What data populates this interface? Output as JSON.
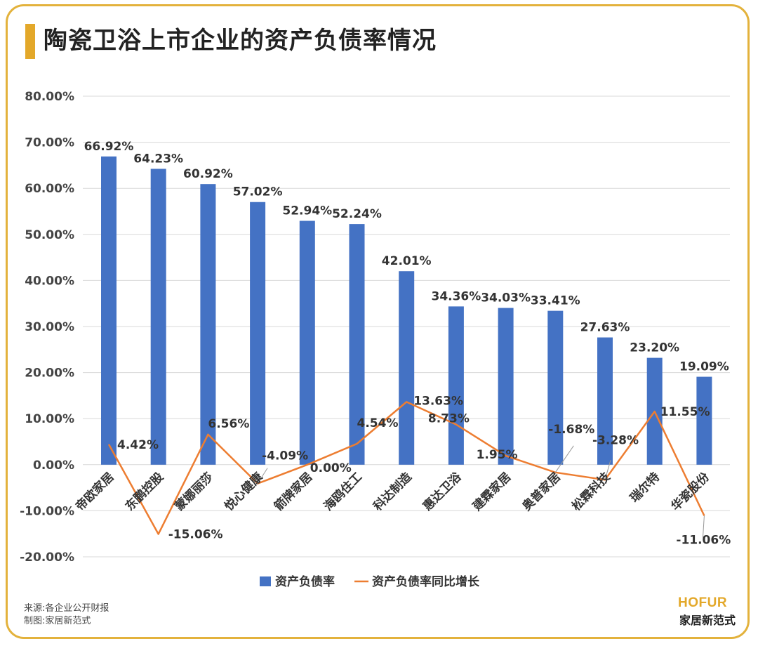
{
  "header": {
    "title": "陶瓷卫浴上市企业的资产负债率情况"
  },
  "footer": {
    "source": "来源:各企业公开财报",
    "made_by": "制图:家居新范式"
  },
  "brand": {
    "en": "HOFUR",
    "cn": "家居新范式"
  },
  "colors": {
    "bar": "#4472c4",
    "line": "#ed7d31",
    "grid": "#d9d9d9",
    "accent": "#e3a82a"
  },
  "chart_data": {
    "type": "bar",
    "title": "陶瓷卫浴上市企业的资产负债率情况",
    "categories": [
      "帝欧家居",
      "东鹏控股",
      "蒙娜丽莎",
      "悦心健康",
      "箭牌家居",
      "海鸥住工",
      "科达制造",
      "惠达卫浴",
      "建霖家居",
      "奥普家居",
      "松霖科技",
      "瑞尔特",
      "华瓷股份"
    ],
    "ylim": [
      -20,
      80
    ],
    "yticks": [
      -20,
      -10,
      0,
      10,
      20,
      30,
      40,
      50,
      60,
      70,
      80
    ],
    "ytick_labels": [
      "-20.00%",
      "-10.00%",
      "0.00%",
      "10.00%",
      "20.00%",
      "30.00%",
      "40.00%",
      "50.00%",
      "60.00%",
      "70.00%",
      "80.00%"
    ],
    "grid": true,
    "legend_position": "bottom-center",
    "series": [
      {
        "name": "资产负债率",
        "type": "bar",
        "values": [
          66.92,
          64.23,
          60.92,
          57.02,
          52.94,
          52.24,
          42.01,
          34.36,
          34.03,
          33.41,
          27.63,
          23.2,
          19.09
        ],
        "labels": [
          "66.92%",
          "64.23%",
          "60.92%",
          "57.02%",
          "52.94%",
          "52.24%",
          "42.01%",
          "34.36%",
          "34.03%",
          "33.41%",
          "27.63%",
          "23.20%",
          "19.09%"
        ]
      },
      {
        "name": "资产负债率同比增长",
        "type": "line",
        "values": [
          4.42,
          -15.06,
          6.56,
          -4.09,
          0.0,
          4.54,
          13.63,
          8.73,
          1.95,
          -1.68,
          -3.28,
          11.55,
          -11.06
        ],
        "labels": [
          "4.42%",
          "-15.06%",
          "6.56%",
          "-4.09%",
          "0.00%",
          "4.54%",
          "13.63%",
          "8.73%",
          "1.95%",
          "-1.68%",
          "-3.28%",
          "11.55%",
          "-11.06%"
        ]
      }
    ]
  }
}
